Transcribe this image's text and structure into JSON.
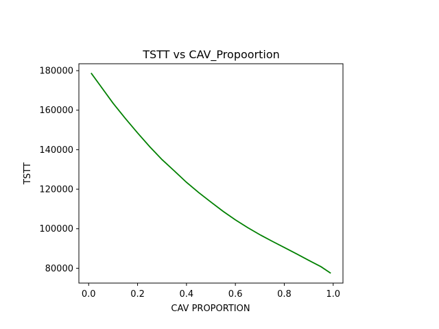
{
  "chart_data": {
    "type": "line",
    "title": "TSTT vs CAV_Propoortion",
    "xlabel": "CAV PROPORTION",
    "ylabel": "TSTT",
    "xlim": [
      -0.04,
      1.04
    ],
    "ylim": [
      72500,
      183500
    ],
    "grid": false,
    "x_ticks": [
      0.0,
      0.2,
      0.4,
      0.6,
      0.8,
      1.0
    ],
    "x_tick_labels": [
      "0.0",
      "0.2",
      "0.4",
      "0.6",
      "0.8",
      "1.0"
    ],
    "y_ticks": [
      80000,
      100000,
      120000,
      140000,
      160000,
      180000
    ],
    "y_tick_labels": [
      "80000",
      "100000",
      "120000",
      "140000",
      "160000",
      "180000"
    ],
    "line_color": "#008000",
    "x": [
      0.01,
      0.05,
      0.1,
      0.15,
      0.2,
      0.25,
      0.3,
      0.35,
      0.4,
      0.45,
      0.5,
      0.55,
      0.6,
      0.65,
      0.7,
      0.75,
      0.8,
      0.85,
      0.9,
      0.95,
      0.99
    ],
    "y": [
      178800,
      172000,
      163500,
      155800,
      148500,
      141500,
      135000,
      129300,
      123500,
      118300,
      113500,
      108800,
      104500,
      100600,
      97000,
      93700,
      90500,
      87300,
      84000,
      80800,
      77500
    ]
  }
}
